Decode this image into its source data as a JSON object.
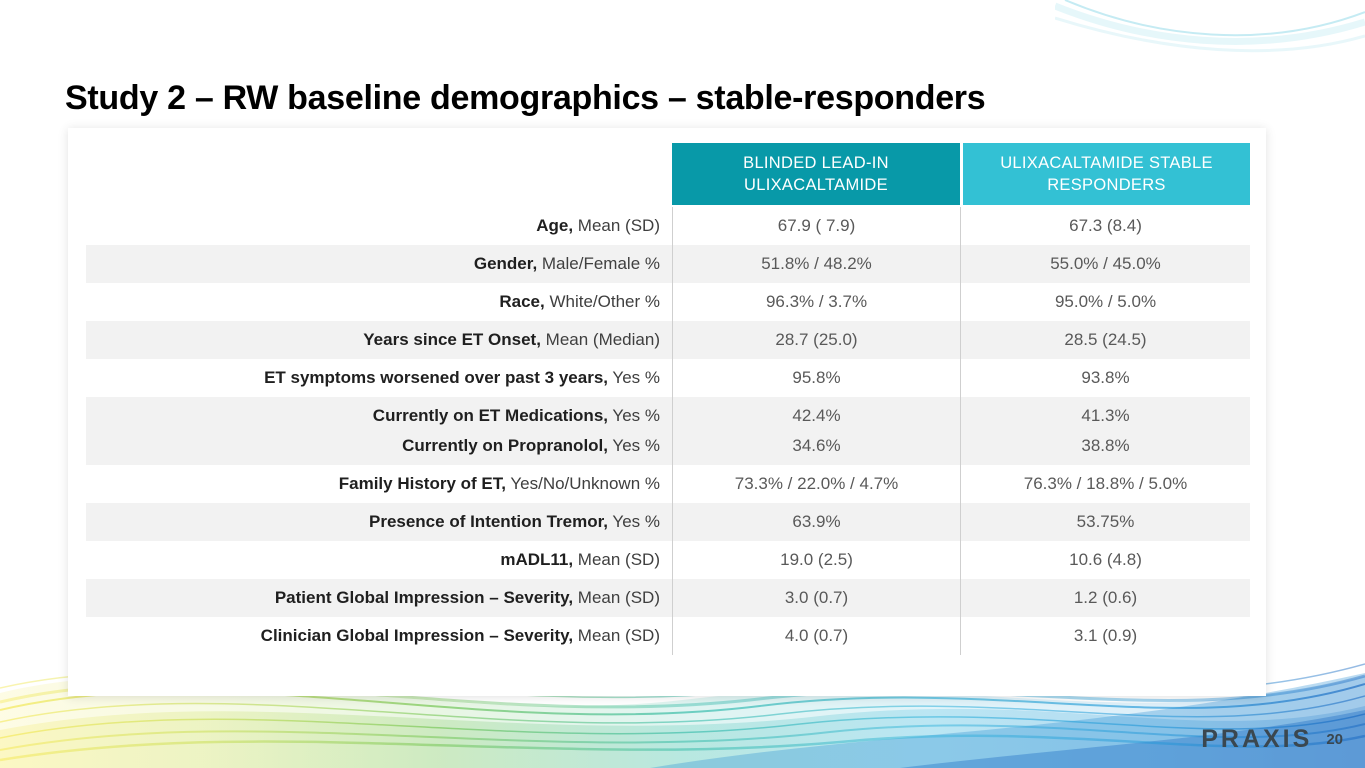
{
  "slide": {
    "title": "Study 2 – RW baseline demographics – stable-responders",
    "logo": "PRAXIS",
    "page_number": "20"
  },
  "colors": {
    "header_col1_bg": "#0899A8",
    "header_col2_bg": "#33C1D4",
    "row_stripe": "#F2F2F2",
    "value_text": "#595959"
  },
  "table": {
    "col_headers": [
      "BLINDED LEAD-IN\nULIXACALTAMIDE",
      "ULIXACALTAMIDE STABLE\nRESPONDERS"
    ],
    "rows": [
      {
        "label": [
          [
            "Age,",
            " Mean (SD)"
          ]
        ],
        "values": [
          [
            "67.9 ( 7.9)"
          ],
          [
            "67.3 (8.4)"
          ]
        ]
      },
      {
        "label": [
          [
            "Gender,",
            " Male/Female %"
          ]
        ],
        "values": [
          [
            "51.8% / 48.2%"
          ],
          [
            "55.0% / 45.0%"
          ]
        ]
      },
      {
        "label": [
          [
            "Race,",
            " White/Other %"
          ]
        ],
        "values": [
          [
            "96.3% / 3.7%"
          ],
          [
            "95.0% / 5.0%"
          ]
        ]
      },
      {
        "label": [
          [
            "Years since ET Onset,",
            " Mean (Median)"
          ]
        ],
        "values": [
          [
            "28.7 (25.0)"
          ],
          [
            "28.5 (24.5)"
          ]
        ]
      },
      {
        "label": [
          [
            "ET symptoms worsened over past 3 years,",
            " Yes %"
          ]
        ],
        "values": [
          [
            "95.8%"
          ],
          [
            "93.8%"
          ]
        ]
      },
      {
        "label": [
          [
            "Currently on ET Medications,",
            " Yes %"
          ],
          [
            "Currently on Propranolol,",
            " Yes %"
          ]
        ],
        "values": [
          [
            "42.4%",
            "34.6%"
          ],
          [
            "41.3%",
            "38.8%"
          ]
        ]
      },
      {
        "label": [
          [
            "Family History of ET,",
            " Yes/No/Unknown %"
          ]
        ],
        "values": [
          [
            "73.3% / 22.0% / 4.7%"
          ],
          [
            "76.3% / 18.8% / 5.0%"
          ]
        ]
      },
      {
        "label": [
          [
            "Presence of Intention Tremor,",
            " Yes %"
          ]
        ],
        "values": [
          [
            "63.9%"
          ],
          [
            "53.75%"
          ]
        ]
      },
      {
        "label": [
          [
            "mADL11,",
            " Mean (SD)"
          ]
        ],
        "values": [
          [
            "19.0 (2.5)"
          ],
          [
            "10.6 (4.8)"
          ]
        ]
      },
      {
        "label": [
          [
            "Patient Global Impression – Severity,",
            " Mean (SD)"
          ]
        ],
        "values": [
          [
            "3.0 (0.7)"
          ],
          [
            "1.2 (0.6)"
          ]
        ]
      },
      {
        "label": [
          [
            "Clinician Global Impression – Severity,",
            " Mean (SD)"
          ]
        ],
        "values": [
          [
            "4.0 (0.7)"
          ],
          [
            "3.1 (0.9)"
          ]
        ]
      }
    ]
  }
}
